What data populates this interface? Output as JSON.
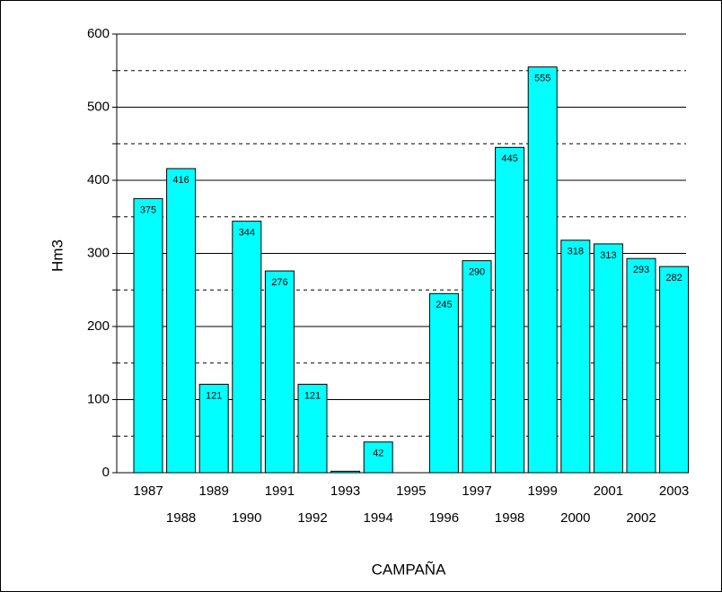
{
  "chart_data": {
    "type": "bar",
    "x_label": "CAMPAÑA",
    "y_label": "Hm3",
    "categories": [
      "1987",
      "1988",
      "1989",
      "1990",
      "1991",
      "1992",
      "1993",
      "1994",
      "1995",
      "1996",
      "1997",
      "1998",
      "1999",
      "2000",
      "2001",
      "2002",
      "2003"
    ],
    "values": [
      375,
      416,
      121,
      344,
      276,
      121,
      2,
      42,
      0,
      245,
      290,
      445,
      555,
      318,
      313,
      293,
      282
    ],
    "value_labels": [
      "375",
      "416",
      "121",
      "344",
      "276",
      "121",
      null,
      "42",
      null,
      "245",
      "290",
      "445",
      "555",
      "318",
      "313",
      "293",
      "282"
    ],
    "color": "#00ffff",
    "ylim": [
      0,
      600
    ],
    "yticks": [
      0,
      100,
      200,
      300,
      400,
      500,
      600
    ],
    "minor_yticks": [
      50,
      150,
      250,
      350,
      450,
      550
    ],
    "grid": true
  }
}
